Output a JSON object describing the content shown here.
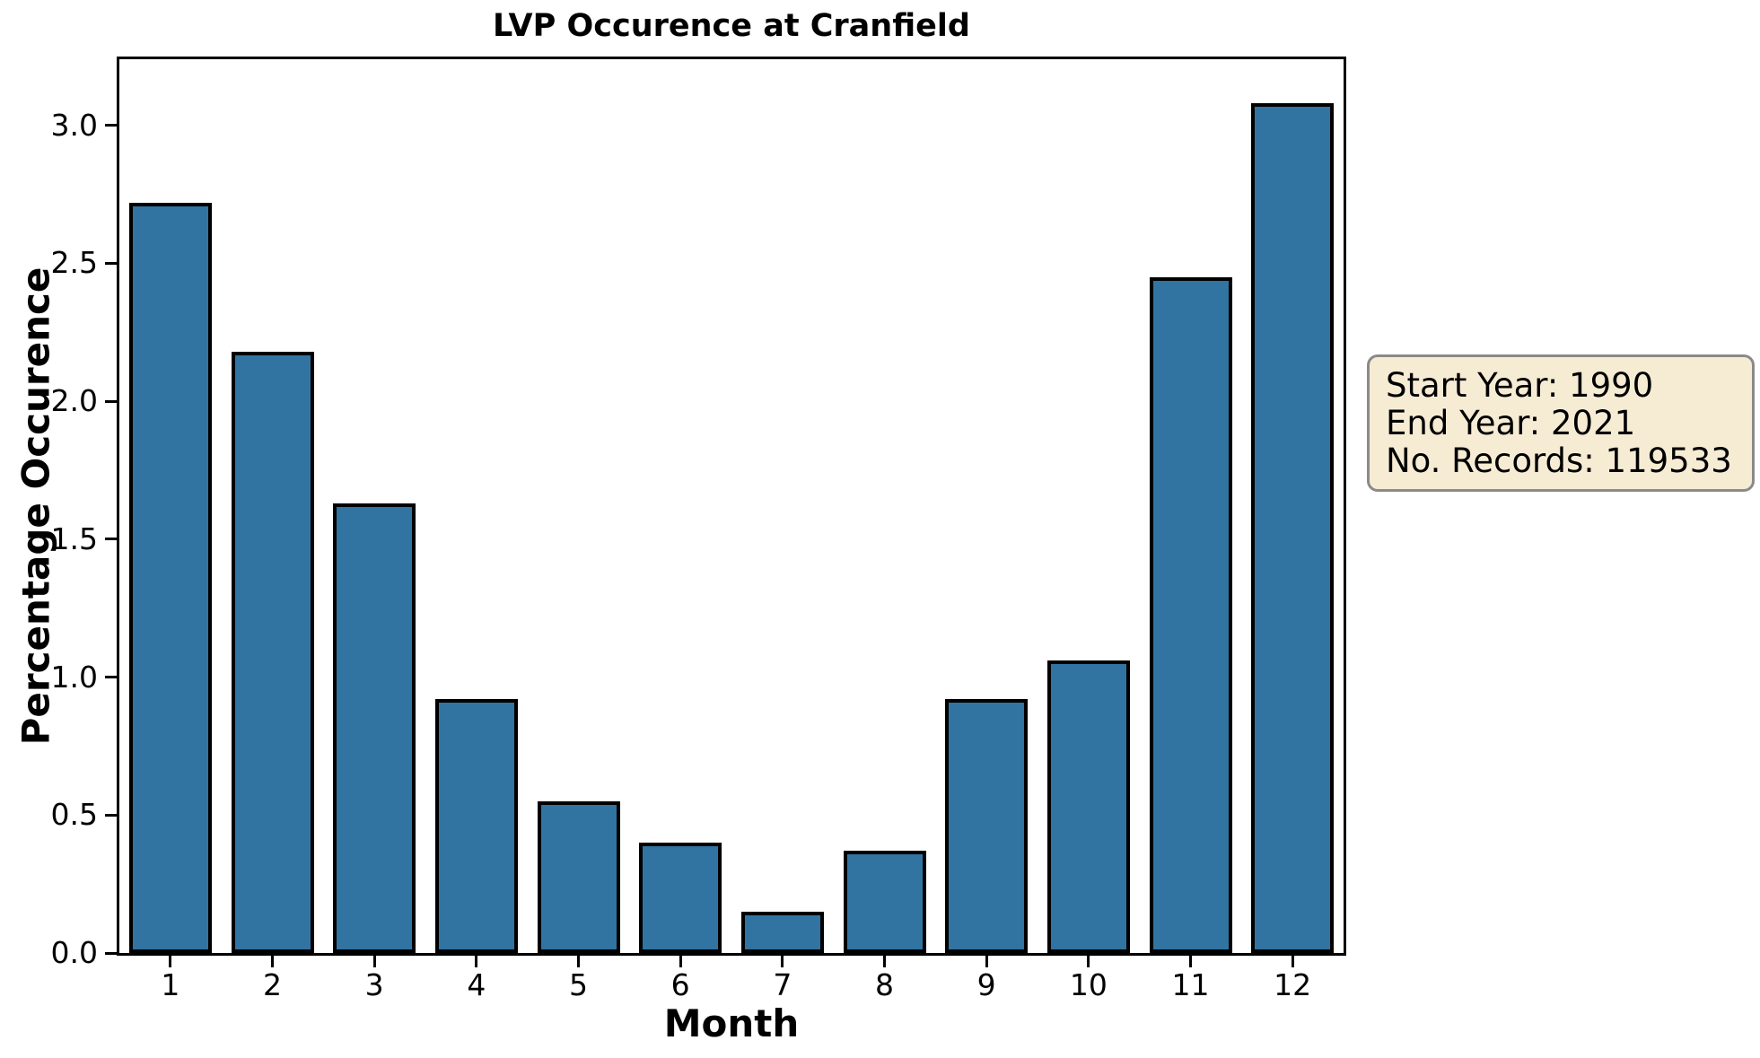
{
  "chart_data": {
    "type": "bar",
    "title": "LVP Occurence at Cranfield",
    "xlabel": "Month",
    "ylabel": "Percentage Occurence",
    "categories": [
      "1",
      "2",
      "3",
      "4",
      "5",
      "6",
      "7",
      "8",
      "9",
      "10",
      "11",
      "12"
    ],
    "values": [
      2.72,
      2.18,
      1.63,
      0.92,
      0.55,
      0.4,
      0.15,
      0.37,
      0.92,
      1.06,
      2.45,
      3.08
    ],
    "ylim": [
      0,
      3.24
    ],
    "yticks": [
      0.0,
      0.5,
      1.0,
      1.5,
      2.0,
      2.5,
      3.0
    ],
    "ytick_decimals": 1,
    "grid": false,
    "legend": "none",
    "bar_color": "#3174A1",
    "bar_edge_color": "#000000",
    "annotation_box": {
      "lines": [
        "Start Year: 1990",
        "End Year: 2021",
        "No. Records: 119533"
      ],
      "background": "#F6ECD4",
      "border_color": "#8A8A8A"
    }
  }
}
